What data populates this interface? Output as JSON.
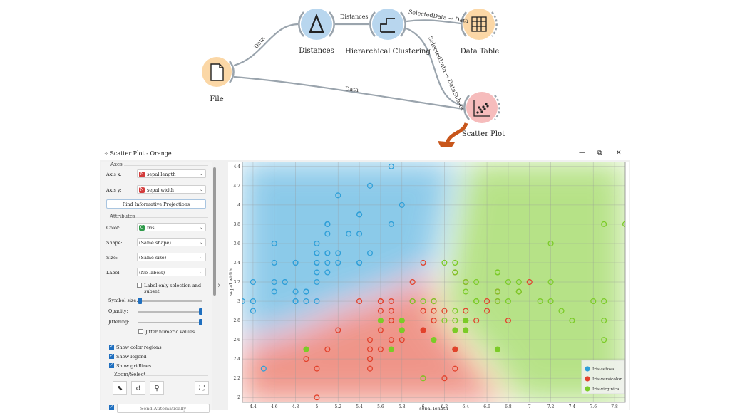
{
  "workflow": {
    "nodes": {
      "file": "File",
      "distances": "Distances",
      "hierarchical": "Hierarchical Clustering",
      "data_table": "Data Table",
      "scatter": "Scatter Plot"
    },
    "links": {
      "file_distances": "Data",
      "distances_hier": "Distances",
      "hier_table": "SelectedData → Data",
      "hier_scatter": "SelectedData → DataSubset",
      "file_scatter": "Data"
    }
  },
  "window": {
    "title": "Scatter Plot - Orange",
    "minimize": "—",
    "maximize": "⧉",
    "close": "✕"
  },
  "panel": {
    "axes_title": "Axes",
    "axis_x_label": "Axis x:",
    "axis_x_value": "sepal length",
    "axis_y_label": "Axis y:",
    "axis_y_value": "sepal width",
    "find_button": "Find Informative Projections",
    "attributes_title": "Attributes",
    "color_label": "Color:",
    "color_value": "iris",
    "shape_label": "Shape:",
    "shape_value": "(Same shape)",
    "size_label": "Size:",
    "size_value": "(Same size)",
    "label_label": "Label:",
    "label_value": "(No labels)",
    "label_only_selection": "Label only selection and subset",
    "symbol_size_label": "Symbol size:",
    "opacity_label": "Opacity:",
    "jittering_label": "Jittering:",
    "jitter_numeric": "Jitter numeric values",
    "show_color_regions": "Show color regions",
    "show_legend": "Show legend",
    "show_gridlines": "Show gridlines",
    "zoom_title": "Zoom/Select",
    "send_automatically": "Send Automatically",
    "var_icon_n": "N",
    "var_icon_c": "C",
    "symbol_size": 0.05,
    "opacity": 1.0,
    "jittering": 1.0
  },
  "colors": {
    "setosa": "#2f9fd8",
    "versicolor": "#e2412b",
    "virginica": "#7bcb27",
    "accent": "#1f6fbf"
  },
  "chart_data": {
    "type": "scatter",
    "xlabel": "sepal length",
    "ylabel": "sepal width",
    "xlim": [
      4.3,
      7.9
    ],
    "ylim": [
      1.95,
      4.45
    ],
    "xticks": [
      "4.4",
      "4.6",
      "4.8",
      "5",
      "5.2",
      "5.4",
      "5.6",
      "5.8",
      "6",
      "6.2",
      "6.4",
      "6.6",
      "6.8",
      "7",
      "7.2",
      "7.4",
      "7.6",
      "7.8"
    ],
    "yticks": [
      "2",
      "2.2",
      "2.4",
      "2.6",
      "2.8",
      "3",
      "3.2",
      "3.4",
      "3.6",
      "3.8",
      "4",
      "4.2",
      "4.4"
    ],
    "legend_position": "bottom-right",
    "grid": true,
    "series": [
      {
        "name": "Iris-setosa",
        "points": [
          [
            5.1,
            3.5
          ],
          [
            4.9,
            3.0
          ],
          [
            4.7,
            3.2
          ],
          [
            4.6,
            3.1
          ],
          [
            5.0,
            3.6
          ],
          [
            5.4,
            3.9
          ],
          [
            4.6,
            3.4
          ],
          [
            5.0,
            3.4
          ],
          [
            4.4,
            2.9
          ],
          [
            4.9,
            3.1
          ],
          [
            5.4,
            3.7
          ],
          [
            4.8,
            3.4
          ],
          [
            4.8,
            3.0
          ],
          [
            4.3,
            3.0
          ],
          [
            5.8,
            4.0
          ],
          [
            5.7,
            4.4
          ],
          [
            5.4,
            3.9
          ],
          [
            5.1,
            3.5
          ],
          [
            5.7,
            3.8
          ],
          [
            5.1,
            3.8
          ],
          [
            5.4,
            3.4
          ],
          [
            5.1,
            3.7
          ],
          [
            4.6,
            3.6
          ],
          [
            5.1,
            3.3
          ],
          [
            4.8,
            3.4
          ],
          [
            5.0,
            3.0
          ],
          [
            5.0,
            3.4
          ],
          [
            5.2,
            3.5
          ],
          [
            5.2,
            3.4
          ],
          [
            4.7,
            3.2
          ],
          [
            4.8,
            3.1
          ],
          [
            5.4,
            3.4
          ],
          [
            5.2,
            4.1
          ],
          [
            5.5,
            4.2
          ],
          [
            4.9,
            3.1
          ],
          [
            5.0,
            3.2
          ],
          [
            5.5,
            3.5
          ],
          [
            4.9,
            3.1
          ],
          [
            4.4,
            3.0
          ],
          [
            5.1,
            3.4
          ],
          [
            5.0,
            3.5
          ],
          [
            4.5,
            2.3
          ],
          [
            4.4,
            3.2
          ],
          [
            5.0,
            3.5
          ],
          [
            5.1,
            3.8
          ],
          [
            4.8,
            3.0
          ],
          [
            5.1,
            3.8
          ],
          [
            4.6,
            3.2
          ],
          [
            5.3,
            3.7
          ],
          [
            5.0,
            3.3
          ]
        ]
      },
      {
        "name": "Iris-versicolor",
        "points": [
          [
            7.0,
            3.2
          ],
          [
            6.4,
            3.2
          ],
          [
            6.9,
            3.1
          ],
          [
            5.5,
            2.3
          ],
          [
            6.5,
            2.8
          ],
          [
            5.7,
            2.8
          ],
          [
            6.3,
            3.3
          ],
          [
            4.9,
            2.4
          ],
          [
            6.6,
            2.9
          ],
          [
            5.2,
            2.7
          ],
          [
            5.0,
            2.0
          ],
          [
            5.9,
            3.0
          ],
          [
            6.0,
            2.2
          ],
          [
            6.1,
            2.9
          ],
          [
            5.6,
            2.9
          ],
          [
            6.7,
            3.1
          ],
          [
            5.6,
            3.0
          ],
          [
            5.8,
            2.7
          ],
          [
            6.2,
            2.2
          ],
          [
            5.6,
            2.5
          ],
          [
            5.9,
            3.2
          ],
          [
            6.1,
            2.8
          ],
          [
            6.3,
            2.5
          ],
          [
            6.1,
            2.8
          ],
          [
            6.4,
            2.9
          ],
          [
            6.6,
            3.0
          ],
          [
            6.8,
            2.8
          ],
          [
            6.7,
            3.0
          ],
          [
            6.0,
            2.9
          ],
          [
            5.7,
            2.6
          ],
          [
            5.5,
            2.4
          ],
          [
            5.5,
            2.4
          ],
          [
            5.8,
            2.7
          ],
          [
            6.0,
            2.7
          ],
          [
            5.4,
            3.0
          ],
          [
            6.0,
            3.4
          ],
          [
            6.7,
            3.1
          ],
          [
            6.3,
            2.3
          ],
          [
            5.6,
            3.0
          ],
          [
            5.5,
            2.5
          ],
          [
            5.5,
            2.6
          ],
          [
            6.1,
            3.0
          ],
          [
            5.8,
            2.6
          ],
          [
            5.0,
            2.3
          ],
          [
            5.6,
            2.7
          ],
          [
            5.7,
            3.0
          ],
          [
            5.7,
            2.9
          ],
          [
            6.2,
            2.9
          ],
          [
            5.1,
            2.5
          ],
          [
            5.7,
            2.8
          ]
        ]
      },
      {
        "name": "Iris-virginica",
        "points": [
          [
            6.3,
            3.3
          ],
          [
            5.8,
            2.7
          ],
          [
            7.1,
            3.0
          ],
          [
            6.3,
            2.9
          ],
          [
            6.5,
            3.0
          ],
          [
            7.6,
            3.0
          ],
          [
            4.9,
            2.5
          ],
          [
            7.3,
            2.9
          ],
          [
            6.7,
            2.5
          ],
          [
            7.2,
            3.6
          ],
          [
            6.5,
            3.2
          ],
          [
            6.4,
            2.7
          ],
          [
            6.8,
            3.0
          ],
          [
            5.7,
            2.5
          ],
          [
            5.8,
            2.8
          ],
          [
            6.4,
            3.2
          ],
          [
            6.5,
            3.0
          ],
          [
            7.7,
            3.8
          ],
          [
            7.7,
            2.6
          ],
          [
            6.0,
            2.2
          ],
          [
            6.9,
            3.2
          ],
          [
            5.6,
            2.8
          ],
          [
            7.7,
            2.8
          ],
          [
            6.3,
            2.7
          ],
          [
            6.7,
            3.3
          ],
          [
            7.2,
            3.2
          ],
          [
            6.2,
            2.8
          ],
          [
            6.1,
            3.0
          ],
          [
            6.4,
            2.8
          ],
          [
            7.2,
            3.0
          ],
          [
            7.4,
            2.8
          ],
          [
            7.9,
            3.8
          ],
          [
            6.4,
            2.8
          ],
          [
            6.3,
            2.8
          ],
          [
            6.1,
            2.6
          ],
          [
            7.7,
            3.0
          ],
          [
            6.3,
            3.4
          ],
          [
            6.4,
            3.1
          ],
          [
            6.0,
            3.0
          ],
          [
            6.9,
            3.1
          ],
          [
            6.7,
            3.1
          ],
          [
            6.9,
            3.1
          ],
          [
            5.8,
            2.7
          ],
          [
            6.8,
            3.2
          ],
          [
            6.7,
            3.3
          ],
          [
            6.7,
            3.0
          ],
          [
            6.3,
            2.5
          ],
          [
            6.5,
            3.0
          ],
          [
            6.2,
            3.4
          ],
          [
            5.9,
            3.0
          ]
        ]
      }
    ],
    "subset_filled": [
      [
        6.0,
        2.7,
        "versicolor"
      ],
      [
        6.3,
        2.5,
        "versicolor"
      ],
      [
        5.6,
        2.8,
        "virginica"
      ],
      [
        5.8,
        2.7,
        "virginica"
      ],
      [
        5.8,
        2.8,
        "virginica"
      ],
      [
        5.7,
        2.5,
        "virginica"
      ],
      [
        6.1,
        2.6,
        "virginica"
      ],
      [
        6.3,
        2.7,
        "virginica"
      ],
      [
        6.4,
        2.7,
        "virginica"
      ],
      [
        6.4,
        2.8,
        "virginica"
      ],
      [
        6.7,
        2.5,
        "virginica"
      ],
      [
        4.9,
        2.5,
        "virginica"
      ]
    ]
  }
}
